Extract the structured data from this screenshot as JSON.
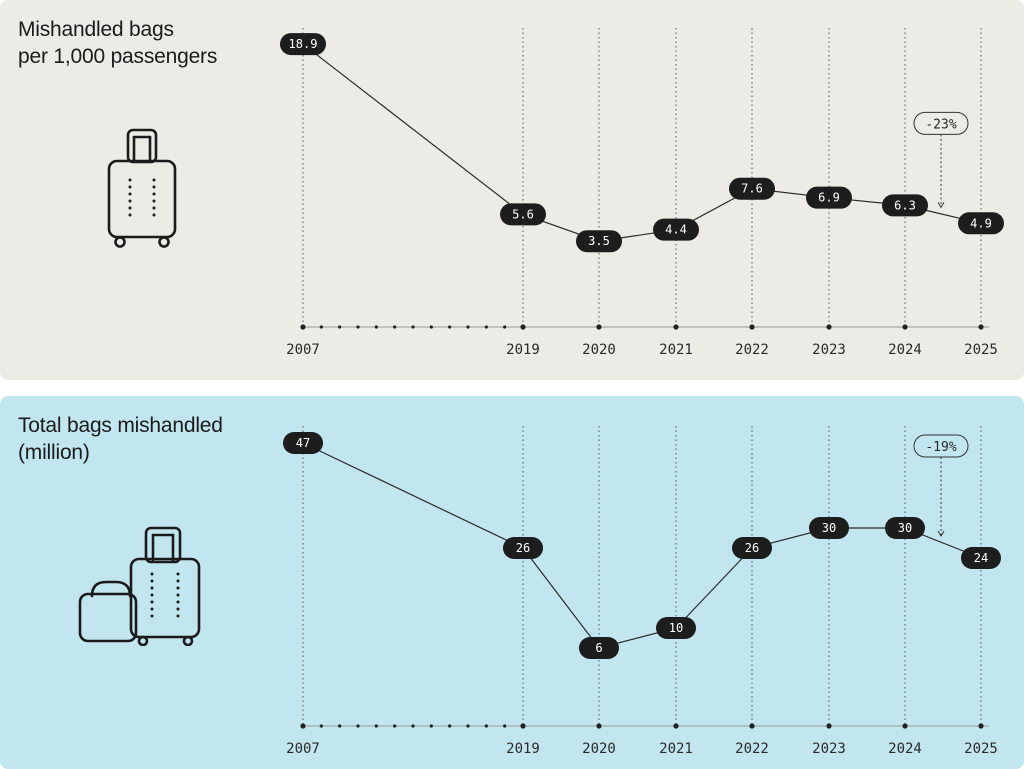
{
  "chart_data": [
    {
      "type": "line",
      "title_lines": [
        "Mishandled bags",
        "per 1,000 passengers"
      ],
      "x": [
        "2007",
        "2019",
        "2020",
        "2021",
        "2022",
        "2023",
        "2024",
        "2025"
      ],
      "series": [
        {
          "values": [
            18.9,
            5.6,
            3.5,
            4.4,
            7.6,
            6.9,
            6.3,
            4.9
          ],
          "labels": [
            "18.9",
            "5.6",
            "3.5",
            "4.4",
            "7.6",
            "6.9",
            "6.3",
            "4.9"
          ]
        }
      ],
      "ylim": [
        0,
        20
      ],
      "grid": "vertical dotted lines at each year",
      "annotation": {
        "text": "-23%",
        "between": [
          "2024",
          "2025"
        ]
      },
      "icon": "suitcase-icon"
    },
    {
      "type": "line",
      "title_lines": [
        "Total bags mishandled",
        "(million)"
      ],
      "x": [
        "2007",
        "2019",
        "2020",
        "2021",
        "2022",
        "2023",
        "2024",
        "2025"
      ],
      "series": [
        {
          "values": [
            47,
            26,
            6,
            10,
            26,
            30,
            30,
            24
          ],
          "labels": [
            "47",
            "26",
            "6",
            "10",
            "26",
            "30",
            "30",
            "24"
          ]
        }
      ],
      "ylim": [
        0,
        50
      ],
      "grid": "vertical dotted lines at each year",
      "annotation": {
        "text": "-19%",
        "between": [
          "2024",
          "2025"
        ]
      },
      "icon": "luggage-pair-icon"
    }
  ],
  "colors": {
    "top_background": "#ecebe6",
    "bottom_background": "#c2e6ef",
    "pill": "#1d1d1d",
    "line": "#2b2b2b"
  }
}
